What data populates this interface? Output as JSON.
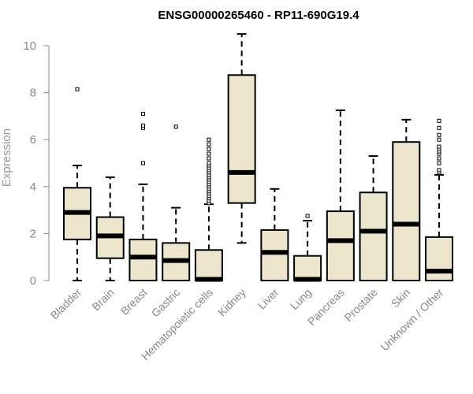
{
  "chart_data": {
    "type": "boxplot",
    "title": "ENSG00000265460 - RP11-690G19.4",
    "xlabel": "",
    "ylabel": "Expression",
    "ylim": [
      0,
      10
    ],
    "yticks": [
      0,
      2,
      4,
      6,
      8,
      10
    ],
    "grid": false,
    "legend": "none",
    "colors": {
      "box_fill": "#ede5cc",
      "box_stroke": "#000000",
      "median": "#000000",
      "axis_text": "#888888"
    },
    "categories": [
      "Bladder",
      "Brain",
      "Breast",
      "Gastric",
      "Hematopoietic cells",
      "Kidney",
      "Liver",
      "Lung",
      "Pancreas",
      "Prostate",
      "Skin",
      "Unknown / Other"
    ],
    "boxes": [
      {
        "category": "Bladder",
        "whisker_low": 0.0,
        "q1": 1.75,
        "median": 2.9,
        "q3": 3.95,
        "whisker_high": 4.9,
        "outliers": [
          8.15
        ]
      },
      {
        "category": "Brain",
        "whisker_low": 0.0,
        "q1": 0.95,
        "median": 1.9,
        "q3": 2.7,
        "whisker_high": 4.4,
        "outliers": []
      },
      {
        "category": "Breast",
        "whisker_low": 0.0,
        "q1": 0.0,
        "median": 1.0,
        "q3": 1.75,
        "whisker_high": 4.1,
        "outliers": [
          5.0,
          6.5,
          6.6,
          7.1
        ]
      },
      {
        "category": "Gastric",
        "whisker_low": 0.0,
        "q1": 0.0,
        "median": 0.85,
        "q3": 1.6,
        "whisker_high": 3.1,
        "outliers": [
          6.55
        ]
      },
      {
        "category": "Hematopoietic cells",
        "whisker_low": 0.0,
        "q1": 0.0,
        "median": 0.05,
        "q3": 1.3,
        "whisker_high": 3.25,
        "outliers": [
          3.3,
          3.4,
          3.5,
          3.6,
          3.7,
          3.8,
          3.9,
          4.0,
          4.1,
          4.2,
          4.3,
          4.4,
          4.5,
          4.6,
          4.7,
          4.8,
          4.9,
          5.0,
          5.2,
          5.4,
          5.6,
          5.8,
          6.0
        ]
      },
      {
        "category": "Kidney",
        "whisker_low": 1.6,
        "q1": 3.3,
        "median": 4.6,
        "q3": 8.75,
        "whisker_high": 10.5,
        "outliers": []
      },
      {
        "category": "Liver",
        "whisker_low": 0.0,
        "q1": 0.0,
        "median": 1.2,
        "q3": 2.15,
        "whisker_high": 3.9,
        "outliers": []
      },
      {
        "category": "Lung",
        "whisker_low": 0.0,
        "q1": 0.0,
        "median": 0.05,
        "q3": 1.05,
        "whisker_high": 2.55,
        "outliers": [
          2.75
        ]
      },
      {
        "category": "Pancreas",
        "whisker_low": 0.0,
        "q1": 0.0,
        "median": 1.7,
        "q3": 2.95,
        "whisker_high": 7.25,
        "outliers": []
      },
      {
        "category": "Prostate",
        "whisker_low": 0.0,
        "q1": 0.0,
        "median": 2.1,
        "q3": 3.75,
        "whisker_high": 5.3,
        "outliers": []
      },
      {
        "category": "Skin",
        "whisker_low": 0.0,
        "q1": 0.0,
        "median": 2.4,
        "q3": 5.9,
        "whisker_high": 6.85,
        "outliers": []
      },
      {
        "category": "Unknown / Other",
        "whisker_low": 0.0,
        "q1": 0.0,
        "median": 0.4,
        "q3": 1.85,
        "whisker_high": 4.5,
        "outliers": [
          4.6,
          4.7,
          5.0,
          5.2,
          5.4,
          5.5,
          5.6,
          5.7,
          6.0,
          6.2,
          6.5,
          6.8
        ]
      }
    ]
  }
}
